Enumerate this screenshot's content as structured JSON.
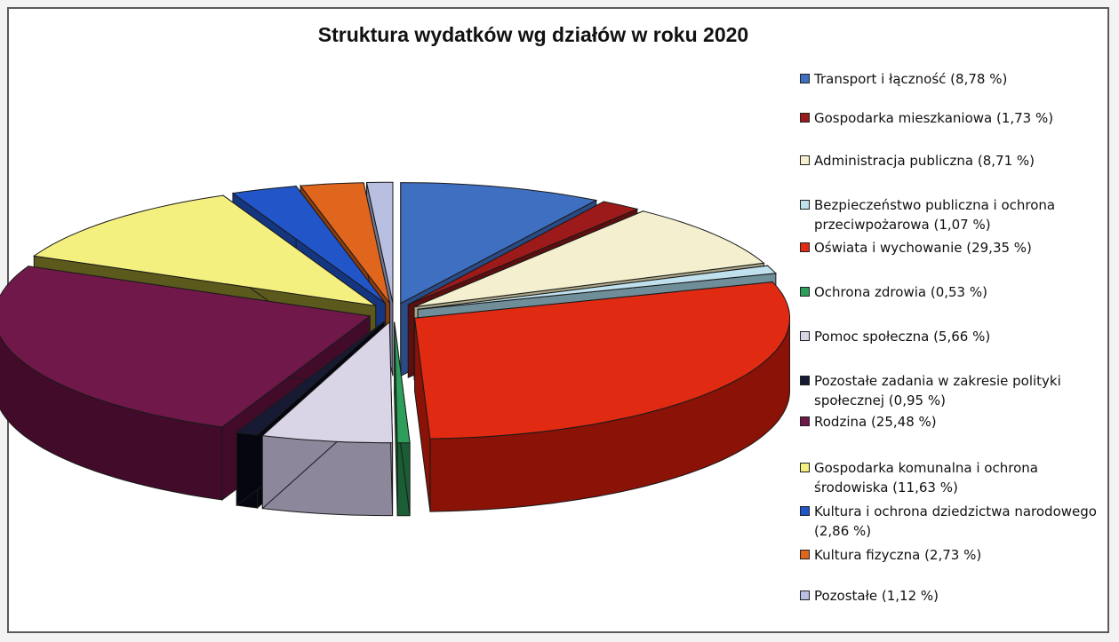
{
  "chart_data": {
    "type": "pie",
    "title": "Struktura wydatków wg działów w roku 2020",
    "legend_position": "right",
    "exploded": true,
    "style": "3d",
    "slices": [
      {
        "label": "Transport i łączność (8,78 %)",
        "value": 8.78,
        "color": "#3f6fc0",
        "side": "#2a4b85"
      },
      {
        "label": "Gospodarka mieszkaniowa (1,73 %)",
        "value": 1.73,
        "color": "#9c1a1a",
        "side": "#5e0e0e"
      },
      {
        "label": "Administracja publiczna (8,71 %)",
        "value": 8.71,
        "color": "#f4f0cf",
        "side": "#a7a386"
      },
      {
        "label": "Bezpieczeństwo publiczna i ochrona przeciwpożarowa (1,07 %)",
        "value": 1.07,
        "color": "#bfe0ec",
        "side": "#6f8e99"
      },
      {
        "label": "Oświata i wychowanie (29,35 %)",
        "value": 29.35,
        "color": "#e02a12",
        "side": "#8a1206"
      },
      {
        "label": "Ochrona zdrowia (0,53 %)",
        "value": 0.53,
        "color": "#2e9f5a",
        "side": "#1a5e35"
      },
      {
        "label": "Pomoc społeczna (5,66 %)",
        "value": 5.66,
        "color": "#d9d4e6",
        "side": "#8d879c"
      },
      {
        "label": "Pozostałe zadania w zakresie polityki społecznej (0,95 %)",
        "value": 0.95,
        "color": "#161a33",
        "side": "#05060f"
      },
      {
        "label": "Rodzina (25,48 %)",
        "value": 25.48,
        "color": "#71184a",
        "side": "#420b2a"
      },
      {
        "label": "Gospodarka komunalna i ochrona środowiska (11,63 %)",
        "value": 11.63,
        "color": "#f4f080",
        "side": "#5b5a1c"
      },
      {
        "label": "Kultura i ochrona dziedzictwa narodowego (2,86 %)",
        "value": 2.86,
        "color": "#2256c8",
        "side": "#143580"
      },
      {
        "label": "Kultura fizyczna (2,73 %)",
        "value": 2.73,
        "color": "#e0661e",
        "side": "#8d3c0d"
      },
      {
        "label": "Pozostałe (1,12 %)",
        "value": 1.12,
        "color": "#b9bfe0",
        "side": "#727791"
      }
    ]
  }
}
